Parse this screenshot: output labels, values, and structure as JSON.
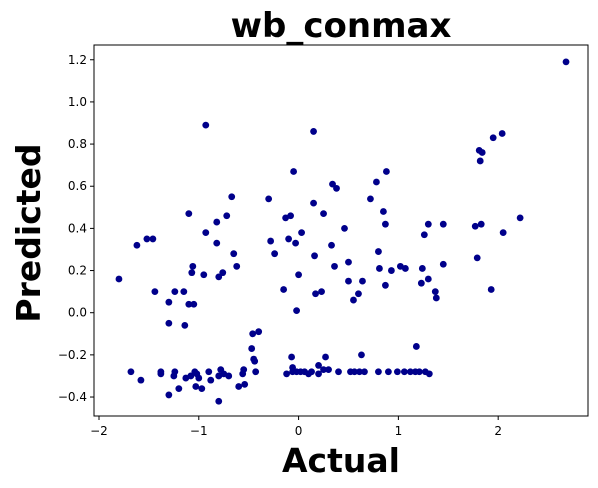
{
  "chart_data": {
    "type": "scatter",
    "title": "wb_conmax",
    "xlabel": "Actual",
    "ylabel": "Predicted",
    "xlim": [
      -2.05,
      2.9
    ],
    "ylim": [
      -0.49,
      1.27
    ],
    "x_ticks": [
      -2,
      -1,
      0,
      1,
      2
    ],
    "x_tick_labels": [
      "−2",
      "−1",
      "0",
      "1",
      "2"
    ],
    "y_ticks": [
      -0.4,
      -0.2,
      0.0,
      0.2,
      0.4,
      0.6,
      0.8,
      1.0,
      1.2
    ],
    "y_tick_labels": [
      "−0.4",
      "−0.2",
      "0.0",
      "0.2",
      "0.4",
      "0.6",
      "0.8",
      "1.0",
      "1.2"
    ],
    "grid": false,
    "legend": "none",
    "marker_color": "#00008b",
    "series": [
      {
        "points": [
          {
            "x": -1.8,
            "y": 0.16
          },
          {
            "x": -1.68,
            "y": -0.28
          },
          {
            "x": -1.62,
            "y": 0.32
          },
          {
            "x": -1.58,
            "y": -0.32
          },
          {
            "x": -1.52,
            "y": 0.35
          },
          {
            "x": -1.46,
            "y": 0.35
          },
          {
            "x": -1.44,
            "y": 0.1
          },
          {
            "x": -1.38,
            "y": -0.29
          },
          {
            "x": -1.38,
            "y": -0.28
          },
          {
            "x": -1.3,
            "y": 0.05
          },
          {
            "x": -1.3,
            "y": -0.05
          },
          {
            "x": -1.3,
            "y": -0.39
          },
          {
            "x": -1.25,
            "y": -0.3
          },
          {
            "x": -1.24,
            "y": 0.1
          },
          {
            "x": -1.24,
            "y": -0.28
          },
          {
            "x": -1.2,
            "y": -0.36
          },
          {
            "x": -1.15,
            "y": 0.1
          },
          {
            "x": -1.14,
            "y": -0.06
          },
          {
            "x": -1.13,
            "y": -0.31
          },
          {
            "x": -1.1,
            "y": 0.04
          },
          {
            "x": -1.1,
            "y": 0.47
          },
          {
            "x": -1.08,
            "y": -0.3
          },
          {
            "x": -1.07,
            "y": 0.19
          },
          {
            "x": -1.06,
            "y": 0.22
          },
          {
            "x": -1.05,
            "y": 0.04
          },
          {
            "x": -1.04,
            "y": -0.28
          },
          {
            "x": -1.03,
            "y": -0.35
          },
          {
            "x": -1.02,
            "y": -0.29
          },
          {
            "x": -1.0,
            "y": -0.31
          },
          {
            "x": -0.97,
            "y": -0.36
          },
          {
            "x": -0.95,
            "y": 0.18
          },
          {
            "x": -0.93,
            "y": 0.38
          },
          {
            "x": -0.93,
            "y": 0.89
          },
          {
            "x": -0.9,
            "y": -0.28
          },
          {
            "x": -0.88,
            "y": -0.32
          },
          {
            "x": -0.82,
            "y": 0.43
          },
          {
            "x": -0.82,
            "y": 0.33
          },
          {
            "x": -0.8,
            "y": 0.17
          },
          {
            "x": -0.8,
            "y": -0.3
          },
          {
            "x": -0.8,
            "y": -0.42
          },
          {
            "x": -0.78,
            "y": -0.27
          },
          {
            "x": -0.76,
            "y": 0.19
          },
          {
            "x": -0.75,
            "y": -0.29
          },
          {
            "x": -0.72,
            "y": 0.46
          },
          {
            "x": -0.7,
            "y": -0.3
          },
          {
            "x": -0.67,
            "y": 0.55
          },
          {
            "x": -0.65,
            "y": 0.28
          },
          {
            "x": -0.62,
            "y": 0.22
          },
          {
            "x": -0.6,
            "y": -0.35
          },
          {
            "x": -0.56,
            "y": -0.29
          },
          {
            "x": -0.55,
            "y": -0.27
          },
          {
            "x": -0.54,
            "y": -0.34
          },
          {
            "x": -0.47,
            "y": -0.17
          },
          {
            "x": -0.46,
            "y": -0.1
          },
          {
            "x": -0.45,
            "y": -0.22
          },
          {
            "x": -0.44,
            "y": -0.23
          },
          {
            "x": -0.43,
            "y": -0.28
          },
          {
            "x": -0.4,
            "y": -0.09
          },
          {
            "x": -0.3,
            "y": 0.54
          },
          {
            "x": -0.28,
            "y": 0.34
          },
          {
            "x": -0.24,
            "y": 0.28
          },
          {
            "x": -0.15,
            "y": 0.11
          },
          {
            "x": -0.13,
            "y": 0.45
          },
          {
            "x": -0.12,
            "y": -0.29
          },
          {
            "x": -0.1,
            "y": 0.35
          },
          {
            "x": -0.08,
            "y": 0.46
          },
          {
            "x": -0.07,
            "y": -0.21
          },
          {
            "x": -0.06,
            "y": -0.28
          },
          {
            "x": -0.06,
            "y": -0.26
          },
          {
            "x": -0.05,
            "y": 0.67
          },
          {
            "x": -0.03,
            "y": 0.33
          },
          {
            "x": -0.02,
            "y": -0.28
          },
          {
            "x": -0.02,
            "y": 0.01
          },
          {
            "x": 0.0,
            "y": 0.18
          },
          {
            "x": 0.02,
            "y": -0.28
          },
          {
            "x": 0.03,
            "y": 0.38
          },
          {
            "x": 0.06,
            "y": -0.28
          },
          {
            "x": 0.1,
            "y": -0.29
          },
          {
            "x": 0.13,
            "y": -0.28
          },
          {
            "x": 0.15,
            "y": 0.52
          },
          {
            "x": 0.15,
            "y": 0.86
          },
          {
            "x": 0.16,
            "y": 0.27
          },
          {
            "x": 0.17,
            "y": 0.09
          },
          {
            "x": 0.2,
            "y": -0.25
          },
          {
            "x": 0.2,
            "y": -0.29
          },
          {
            "x": 0.23,
            "y": 0.1
          },
          {
            "x": 0.25,
            "y": 0.47
          },
          {
            "x": 0.25,
            "y": -0.27
          },
          {
            "x": 0.27,
            "y": -0.21
          },
          {
            "x": 0.3,
            "y": -0.27
          },
          {
            "x": 0.33,
            "y": 0.32
          },
          {
            "x": 0.34,
            "y": 0.61
          },
          {
            "x": 0.36,
            "y": 0.22
          },
          {
            "x": 0.38,
            "y": 0.59
          },
          {
            "x": 0.4,
            "y": -0.28
          },
          {
            "x": 0.46,
            "y": 0.4
          },
          {
            "x": 0.5,
            "y": 0.24
          },
          {
            "x": 0.5,
            "y": 0.15
          },
          {
            "x": 0.52,
            "y": -0.28
          },
          {
            "x": 0.55,
            "y": 0.06
          },
          {
            "x": 0.56,
            "y": -0.28
          },
          {
            "x": 0.6,
            "y": 0.09
          },
          {
            "x": 0.61,
            "y": -0.28
          },
          {
            "x": 0.63,
            "y": -0.2
          },
          {
            "x": 0.64,
            "y": 0.15
          },
          {
            "x": 0.66,
            "y": -0.28
          },
          {
            "x": 0.72,
            "y": 0.54
          },
          {
            "x": 0.78,
            "y": 0.62
          },
          {
            "x": 0.8,
            "y": -0.28
          },
          {
            "x": 0.8,
            "y": 0.29
          },
          {
            "x": 0.81,
            "y": 0.21
          },
          {
            "x": 0.85,
            "y": 0.48
          },
          {
            "x": 0.87,
            "y": 0.42
          },
          {
            "x": 0.87,
            "y": 0.13
          },
          {
            "x": 0.88,
            "y": 0.67
          },
          {
            "x": 0.9,
            "y": -0.28
          },
          {
            "x": 0.93,
            "y": 0.2
          },
          {
            "x": 0.99,
            "y": -0.28
          },
          {
            "x": 1.02,
            "y": 0.22
          },
          {
            "x": 1.06,
            "y": -0.28
          },
          {
            "x": 1.07,
            "y": 0.21
          },
          {
            "x": 1.12,
            "y": -0.28
          },
          {
            "x": 1.17,
            "y": -0.28
          },
          {
            "x": 1.18,
            "y": -0.16
          },
          {
            "x": 1.21,
            "y": -0.28
          },
          {
            "x": 1.23,
            "y": 0.14
          },
          {
            "x": 1.24,
            "y": 0.21
          },
          {
            "x": 1.26,
            "y": 0.37
          },
          {
            "x": 1.27,
            "y": -0.28
          },
          {
            "x": 1.3,
            "y": 0.16
          },
          {
            "x": 1.3,
            "y": 0.42
          },
          {
            "x": 1.31,
            "y": -0.29
          },
          {
            "x": 1.37,
            "y": 0.1
          },
          {
            "x": 1.38,
            "y": 0.07
          },
          {
            "x": 1.45,
            "y": 0.42
          },
          {
            "x": 1.45,
            "y": 0.23
          },
          {
            "x": 1.77,
            "y": 0.41
          },
          {
            "x": 1.79,
            "y": 0.26
          },
          {
            "x": 1.81,
            "y": 0.77
          },
          {
            "x": 1.82,
            "y": 0.72
          },
          {
            "x": 1.83,
            "y": 0.42
          },
          {
            "x": 1.84,
            "y": 0.76
          },
          {
            "x": 1.93,
            "y": 0.11
          },
          {
            "x": 1.95,
            "y": 0.83
          },
          {
            "x": 2.04,
            "y": 0.85
          },
          {
            "x": 2.05,
            "y": 0.38
          },
          {
            "x": 2.22,
            "y": 0.45
          },
          {
            "x": 2.68,
            "y": 1.19
          }
        ]
      }
    ]
  }
}
